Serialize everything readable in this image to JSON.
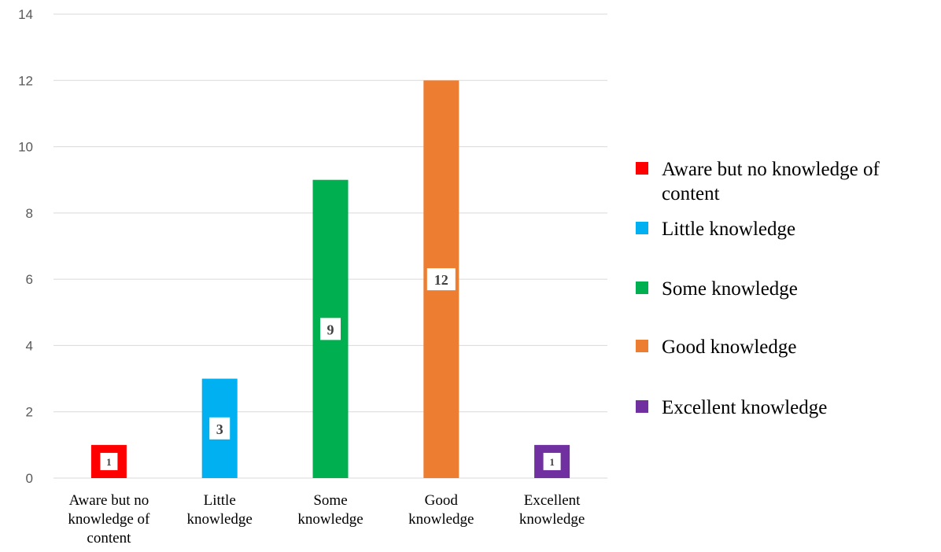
{
  "chart_data": {
    "type": "bar",
    "categories": [
      [
        "Aware but no",
        "knowledge of",
        "content"
      ],
      [
        "Little",
        "knowledge"
      ],
      [
        "Some",
        "knowledge"
      ],
      [
        "Good",
        "knowledge"
      ],
      [
        "Excellent",
        "knowledge"
      ]
    ],
    "values": [
      1,
      3,
      9,
      12,
      1
    ],
    "colors": [
      "#ff0000",
      "#00b0f0",
      "#00b050",
      "#ed7d31",
      "#7030a0"
    ],
    "ylim": [
      0,
      14
    ],
    "yticks": [
      0,
      2,
      4,
      6,
      8,
      10,
      12,
      14
    ],
    "grid": true,
    "data_labels": [
      "1",
      "3",
      "9",
      "12",
      "1"
    ],
    "legend": {
      "position": "right",
      "entries": [
        [
          "Aware but no knowledge of",
          "content"
        ],
        [
          "Little knowledge"
        ],
        [
          "Some knowledge"
        ],
        [
          "Good knowledge"
        ],
        [
          "Excellent knowledge"
        ]
      ]
    }
  }
}
